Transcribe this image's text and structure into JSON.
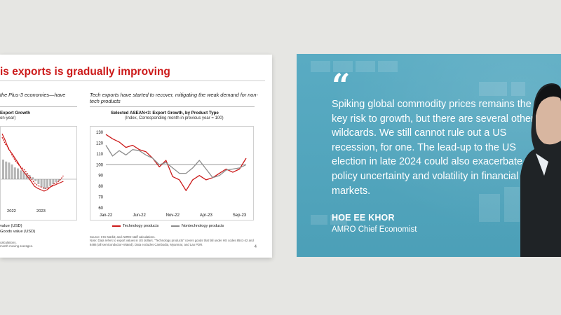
{
  "slide": {
    "title": "is exports is gradually improving",
    "left_subtitle": "the Plus-3 economies—have",
    "right_subtitle": "Tech exports have started to recover, mitigating the weak demand for non-tech products",
    "left_chart": {
      "title": "Export Growth",
      "subtitle": "on-year)",
      "x_ticks": [
        "2022",
        "2023"
      ],
      "legend": [
        "value (USD)",
        "Goods value (USD)"
      ],
      "footnote": "calculations.\nmonth moving averages."
    },
    "page_number": "4",
    "source_note": "Source: IHS Markit; and AMRO staff calculations.\nNote: Data refers to export values in US dollars. \"Technology products\" covers goods that fall under HS codes 8541-42 and 8486 (all semiconductor-related). Data excludes Cambodia, Myanmar, and Lao PDR."
  },
  "chart_data": {
    "type": "line",
    "title": "Selected ASEAN+3: Export Growth, by Product Type",
    "subtitle": "(Index, Corresponding month in previous year = 100)",
    "x": [
      "Jan-22",
      "Feb-22",
      "Mar-22",
      "Apr-22",
      "May-22",
      "Jun-22",
      "Jul-22",
      "Aug-22",
      "Sep-22",
      "Oct-22",
      "Nov-22",
      "Dec-22",
      "Jan-23",
      "Feb-23",
      "Mar-23",
      "Apr-23",
      "May-23",
      "Jun-23",
      "Jul-23",
      "Aug-23",
      "Sep-23",
      "Oct-23"
    ],
    "x_ticks": [
      "Jan-22",
      "Jun-22",
      "Nov-22",
      "Apr-23",
      "Sep-23"
    ],
    "y_ticks": [
      "60",
      "70",
      "80",
      "90",
      "100",
      "110",
      "120",
      "130"
    ],
    "ylim": [
      60,
      130
    ],
    "reference_line": 100,
    "series": [
      {
        "name": "Technology products",
        "color": "#cc1a1a",
        "values": [
          128,
          124,
          121,
          116,
          118,
          114,
          112,
          106,
          98,
          104,
          89,
          86,
          76,
          86,
          90,
          86,
          88,
          92,
          96,
          93,
          96,
          106
        ]
      },
      {
        "name": "Nontechnology products",
        "color": "#8c8c8c",
        "values": [
          118,
          108,
          113,
          109,
          114,
          113,
          109,
          106,
          100,
          102,
          97,
          92,
          92,
          97,
          104,
          96,
          88,
          90,
          95,
          96,
          97,
          100
        ]
      }
    ]
  },
  "quote": {
    "mark": "“",
    "text": "Spiking global commodity prices remains the key risk to growth, but there are several other wildcards. We still cannot rule out a US recession, for one. The lead-up to the US election in late 2024 could also exacerbate policy uncertainty and volatility in financial markets.",
    "name": "HOE EE KHOR",
    "role": "AMRO Chief Economist"
  },
  "colors": {
    "background": "#e6e6e3",
    "quote_card": "#4fa6bf",
    "title_red": "#cc1a1a"
  }
}
